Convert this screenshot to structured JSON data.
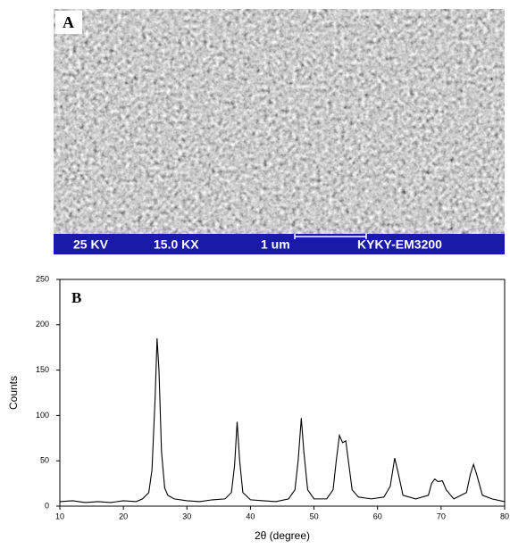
{
  "image_panel": {
    "label": "A",
    "info_bar": [
      "25 KV",
      "15.0 KX",
      "1 um",
      "KYKY-EM3200"
    ]
  },
  "chart_data": {
    "type": "line",
    "annotation": "B",
    "xlabel": "2θ (degree)",
    "ylabel": "Counts",
    "color": "#000000",
    "x": [
      10,
      12,
      14,
      16,
      18,
      20,
      22,
      23,
      24,
      24.5,
      25,
      25.3,
      25.6,
      26,
      26.5,
      27,
      28,
      30,
      32,
      34,
      36,
      37,
      37.5,
      37.9,
      38.3,
      38.8,
      40,
      42,
      44,
      46,
      47,
      47.5,
      48,
      48.4,
      49,
      50,
      52,
      53,
      53.5,
      54,
      54.5,
      55,
      55.5,
      56,
      57,
      59,
      61,
      62,
      62.7,
      63.3,
      64,
      66,
      68,
      68.5,
      69,
      69.5,
      70.2,
      70.8,
      72,
      74,
      74.6,
      75.1,
      75.6,
      76.5,
      78,
      80
    ],
    "values": [
      5,
      6,
      4,
      5,
      4,
      6,
      5,
      8,
      15,
      40,
      120,
      185,
      150,
      60,
      20,
      12,
      8,
      6,
      5,
      7,
      8,
      15,
      45,
      93,
      50,
      15,
      7,
      6,
      5,
      8,
      18,
      50,
      97,
      60,
      18,
      8,
      8,
      18,
      50,
      78,
      70,
      72,
      45,
      18,
      10,
      8,
      10,
      22,
      53,
      35,
      12,
      8,
      12,
      25,
      30,
      27,
      28,
      18,
      8,
      15,
      35,
      46,
      35,
      12,
      8,
      5
    ],
    "xlim": [
      10,
      80
    ],
    "xticks": [
      10,
      20,
      30,
      40,
      50,
      60,
      70,
      80
    ],
    "ylim": [
      0,
      250
    ],
    "yticks": [
      0,
      50,
      100,
      150,
      200,
      250
    ]
  }
}
